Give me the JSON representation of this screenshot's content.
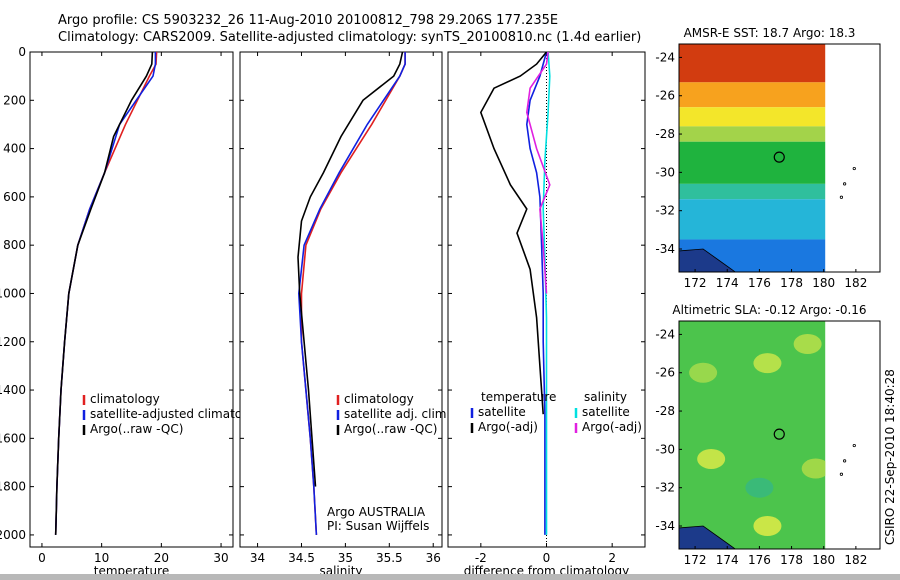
{
  "header": {
    "line1": "Argo profile: CS 5903232_26 11-Aug-2010 20100812_798 29.206S 177.235E",
    "line2": "Climatology: CARS2009. Satellite-adjusted climatology: synTS_20100810.nc (1.4d earlier)"
  },
  "footer": {
    "credit": "CSIRO 22-Sep-2010 18:40:28"
  },
  "colors": {
    "climatology": "#e02020",
    "satellite": "#1020e0",
    "argo": "#000000",
    "sat_salinity": "#00e0e0",
    "argo_salinity": "#e020e0"
  },
  "chart_data": [
    {
      "type": "line",
      "name": "temperature-profile",
      "xlabel": "temperature",
      "ylabel": "",
      "xlim": [
        -2,
        32
      ],
      "ylim": [
        2050,
        0
      ],
      "xticks": [
        0,
        10,
        20,
        30
      ],
      "yticks": [
        0,
        200,
        400,
        600,
        800,
        1000,
        1200,
        1400,
        1600,
        1800,
        2000
      ],
      "series": [
        {
          "name": "climatology",
          "color": "#e02020",
          "x": [
            19.2,
            19.1,
            18.0,
            14.0,
            10.5,
            8.0,
            6.0,
            4.5,
            3.8,
            3.2,
            2.8,
            2.5,
            2.3
          ],
          "y": [
            0,
            50,
            100,
            300,
            500,
            650,
            800,
            1000,
            1200,
            1400,
            1600,
            1800,
            2000
          ]
        },
        {
          "name": "satellite-adjusted climatology",
          "color": "#1020e0",
          "x": [
            19.0,
            19.0,
            18.6,
            13.0,
            10.5,
            8.0,
            6.0,
            4.5,
            3.8,
            3.2,
            2.8,
            2.5,
            2.3
          ],
          "y": [
            0,
            50,
            100,
            300,
            500,
            650,
            800,
            1000,
            1200,
            1400,
            1600,
            1800,
            2000
          ]
        },
        {
          "name": "Argo(..raw -QC)",
          "color": "#000000",
          "x": [
            18.5,
            18.4,
            17.5,
            15.0,
            12.0,
            10.5,
            8.2,
            6.0,
            4.5,
            3.8,
            3.2,
            2.8,
            2.5,
            2.3
          ],
          "y": [
            0,
            50,
            100,
            200,
            350,
            500,
            650,
            800,
            1000,
            1200,
            1400,
            1600,
            1800,
            2000
          ]
        }
      ],
      "legend": [
        "climatology",
        "satellite-adjusted climatology",
        "Argo(..raw -QC)"
      ],
      "legend_position": "bottom-center"
    },
    {
      "type": "line",
      "name": "salinity-profile",
      "xlabel": "salinity",
      "ylabel": "",
      "xlim": [
        33.8,
        36.1
      ],
      "ylim": [
        2050,
        0
      ],
      "xticks": [
        34,
        34.5,
        35,
        35.5,
        36
      ],
      "series": [
        {
          "name": "climatology",
          "color": "#e02020",
          "x": [
            35.68,
            35.68,
            35.62,
            35.3,
            34.95,
            34.72,
            34.55,
            34.5,
            34.5,
            34.55,
            34.6,
            34.64,
            34.67
          ],
          "y": [
            0,
            50,
            100,
            300,
            500,
            650,
            800,
            1000,
            1200,
            1400,
            1600,
            1800,
            2000
          ]
        },
        {
          "name": "satellite adj. clim.",
          "color": "#1020e0",
          "x": [
            35.68,
            35.68,
            35.62,
            35.25,
            34.93,
            34.71,
            34.53,
            34.47,
            34.5,
            34.55,
            34.6,
            34.64,
            34.67
          ],
          "y": [
            0,
            50,
            100,
            300,
            500,
            650,
            800,
            1000,
            1200,
            1400,
            1600,
            1800,
            2000
          ]
        },
        {
          "name": "Argo(..raw -QC)",
          "color": "#000000",
          "x": [
            35.65,
            35.62,
            35.55,
            35.2,
            34.95,
            34.75,
            34.6,
            34.5,
            34.46,
            34.48,
            34.53,
            34.58,
            34.62,
            34.66
          ],
          "y": [
            0,
            50,
            100,
            200,
            350,
            500,
            600,
            700,
            850,
            1000,
            1200,
            1400,
            1600,
            1800
          ]
        }
      ],
      "legend": [
        "climatology",
        "satellite adj. clim.",
        "Argo(..raw -QC)"
      ],
      "legend_position": "bottom-center",
      "annotation": [
        "Argo AUSTRALIA",
        "PI: Susan Wijffels"
      ]
    },
    {
      "type": "line",
      "name": "difference-profile",
      "xlabel": "difference from climatology",
      "ylabel": "",
      "xlim": [
        -3,
        3
      ],
      "ylim": [
        2050,
        0
      ],
      "xticks": [
        -2,
        0,
        2
      ],
      "series": [
        {
          "name": "temperature satellite",
          "color": "#1020e0",
          "x": [
            0,
            -0.2,
            -0.5,
            -0.6,
            -0.5,
            -0.3,
            -0.2,
            -0.15,
            -0.1,
            -0.1,
            -0.05,
            -0.05
          ],
          "y": [
            0,
            100,
            200,
            300,
            400,
            500,
            600,
            800,
            1000,
            1200,
            1500,
            2000
          ]
        },
        {
          "name": "temperature Argo(-adj)",
          "color": "#000000",
          "x": [
            0,
            -0.3,
            -0.8,
            -1.6,
            -2.0,
            -1.6,
            -1.1,
            -0.6,
            -0.9,
            -0.5,
            -0.3,
            -0.2,
            -0.1
          ],
          "y": [
            0,
            50,
            100,
            150,
            250,
            400,
            550,
            650,
            750,
            900,
            1100,
            1300,
            1500
          ]
        },
        {
          "name": "salinity satellite",
          "color": "#00e0e0",
          "x": [
            0.05,
            0.1,
            0.05,
            -0.05,
            -0.1,
            -0.05,
            0,
            0,
            0
          ],
          "y": [
            0,
            100,
            250,
            450,
            650,
            850,
            1100,
            1500,
            2000
          ]
        },
        {
          "name": "salinity Argo(-adj)",
          "color": "#e020e0",
          "x": [
            0.05,
            0,
            -0.5,
            -0.6,
            -0.3,
            0.1,
            -0.2,
            -0.1,
            0
          ],
          "y": [
            0,
            50,
            150,
            250,
            400,
            550,
            650,
            800,
            1000
          ]
        }
      ],
      "legend_headers": [
        "temperature",
        "salinity"
      ],
      "legend": [
        "satellite",
        "Argo(-adj)",
        "satellite",
        "Argo(-adj)"
      ],
      "legend_position": "bottom-center"
    },
    {
      "type": "heatmap",
      "name": "amsr-e-sst-map",
      "title": "AMSR-E SST: 18.7  Argo: 18.3",
      "xlim": [
        171,
        183.5
      ],
      "ylim": [
        -35.2,
        -23.3
      ],
      "xticks": [
        172,
        174,
        176,
        178,
        180,
        182
      ],
      "yticks": [
        -24,
        -26,
        -28,
        -30,
        -32,
        -34
      ],
      "marker": {
        "lon": 177.235,
        "lat": -29.206
      },
      "bands": [
        {
          "lat_from": -23.3,
          "lat_to": -25.3,
          "color": "#d23c10"
        },
        {
          "lat_from": -25.3,
          "lat_to": -26.6,
          "color": "#f7a21e"
        },
        {
          "lat_from": -26.6,
          "lat_to": -27.6,
          "color": "#f3e62a"
        },
        {
          "lat_from": -27.6,
          "lat_to": -28.4,
          "color": "#a3d34a"
        },
        {
          "lat_from": -28.4,
          "lat_to": -30.6,
          "color": "#1fb33e"
        },
        {
          "lat_from": -30.6,
          "lat_to": -31.4,
          "color": "#2fbf9d"
        },
        {
          "lat_from": -31.4,
          "lat_to": -33.5,
          "color": "#25b5d8"
        },
        {
          "lat_from": -33.5,
          "lat_to": -35.2,
          "color": "#1a78e0"
        }
      ]
    },
    {
      "type": "heatmap",
      "name": "altimetric-sla-map",
      "title": "Altimetric SLA: -0.12  Argo: -0.16",
      "xlim": [
        171,
        183.5
      ],
      "ylim": [
        -35.2,
        -23.3
      ],
      "xticks": [
        172,
        174,
        176,
        178,
        180,
        182
      ],
      "yticks": [
        -24,
        -26,
        -28,
        -30,
        -32,
        -34
      ],
      "marker": {
        "lon": 177.235,
        "lat": -29.206
      },
      "base_color": "#4cc44c",
      "patches": [
        {
          "lon": 176.5,
          "lat": -25.5,
          "color": "#c8e64a"
        },
        {
          "lon": 179.0,
          "lat": -24.5,
          "color": "#b9e04a"
        },
        {
          "lon": 173.0,
          "lat": -30.5,
          "color": "#d8ea48"
        },
        {
          "lon": 176.5,
          "lat": -34.0,
          "color": "#e0ec46"
        },
        {
          "lon": 172.5,
          "lat": -26.0,
          "color": "#a6dc4c"
        },
        {
          "lon": 176.0,
          "lat": -32.0,
          "color": "#37b880"
        },
        {
          "lon": 179.5,
          "lat": -31.0,
          "color": "#aedc48"
        }
      ]
    }
  ]
}
